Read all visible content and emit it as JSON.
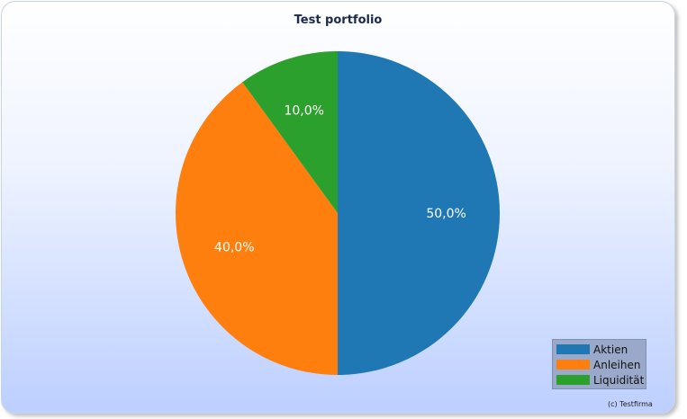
{
  "chart_data": {
    "type": "pie",
    "title": "Test portfolio",
    "categories": [
      "Aktien",
      "Anleihen",
      "Liquidität"
    ],
    "values": [
      50.0,
      40.0,
      10.0
    ],
    "labels": [
      "50,0%",
      "40,0%",
      "10,0%"
    ],
    "colors": [
      "#1f77b4",
      "#ff7f0e",
      "#2ca02c"
    ],
    "legend_position": "bottom-right",
    "start": "top",
    "direction": "clockwise"
  },
  "footer": {
    "credit": "(c) Testfirma"
  }
}
